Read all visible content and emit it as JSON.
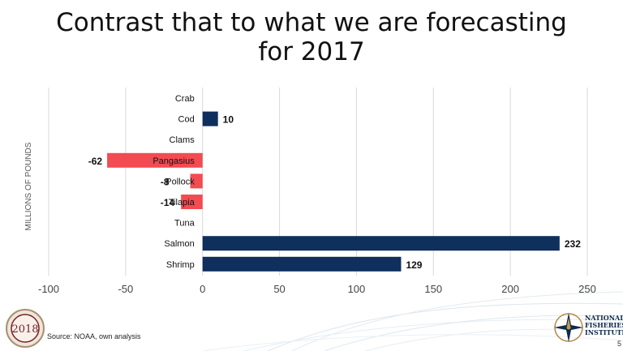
{
  "slide": {
    "title_line1": "Contrast that to what we are forecasting",
    "title_line2": "for 2017",
    "source": "Source:  NOAA, own analysis",
    "page_number": "5",
    "conference_logo_year": "2018",
    "institute_logo_text": [
      "NATIONAL",
      "FISHERIES",
      "INSTITUTE"
    ]
  },
  "colors": {
    "positive": "#0f2f5c",
    "negative": "#f24b52",
    "grid": "#d9d9d9",
    "text": "#111111",
    "axis_text": "#444444"
  },
  "chart_data": {
    "type": "bar",
    "orientation": "horizontal",
    "title": "Contrast that to what we are forecasting for 2017",
    "ylabel": "MILLIONS OF POUNDS",
    "xlim": [
      -100,
      250
    ],
    "x_ticks": [
      -100,
      -50,
      0,
      50,
      100,
      150,
      200,
      250
    ],
    "x_tick_labels": [
      "-100",
      "-50",
      "0",
      "50",
      "100",
      "150",
      "200",
      "250"
    ],
    "grid": true,
    "categories": [
      "Crab",
      "Cod",
      "Clams",
      "Pangasius",
      "Pollock",
      "Tilapia",
      "Tuna",
      "Salmon",
      "Shrimp"
    ],
    "values": [
      0,
      10,
      0,
      -62,
      -8,
      -14,
      0,
      232,
      129
    ],
    "value_labels": [
      "",
      "10",
      "",
      "-62",
      "-8",
      "-14",
      "",
      "232",
      "129"
    ]
  }
}
